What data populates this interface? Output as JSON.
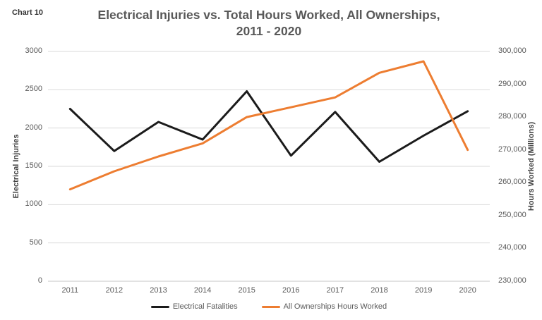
{
  "chart_label": "Chart 10",
  "chart_data": {
    "type": "line",
    "title": "Electrical Injuries vs. Total Hours Worked, All Ownerships, 2011 - 2020",
    "title_lines": [
      "Electrical Injuries vs. Total Hours Worked, All Ownerships,",
      "2011 - 2020"
    ],
    "x": [
      "2011",
      "2012",
      "2013",
      "2014",
      "2015",
      "2016",
      "2017",
      "2018",
      "2019",
      "2020"
    ],
    "series": [
      {
        "name": "Electrical Fatalities",
        "axis": "left",
        "color": "#1b1b1b",
        "values": [
          2250,
          1700,
          2080,
          1850,
          2480,
          1640,
          2210,
          1560,
          1900,
          2220
        ]
      },
      {
        "name": "All Ownerships Hours Worked",
        "axis": "right",
        "color": "#ED7D31",
        "values": [
          258000,
          263500,
          268000,
          272000,
          280000,
          283000,
          286000,
          293500,
          297000,
          270000
        ]
      }
    ],
    "left_axis": {
      "label": "Electrical Injuries",
      "min": 0,
      "max": 3000,
      "step": 500,
      "ticks": [
        "0",
        "500",
        "1000",
        "1500",
        "2000",
        "2500",
        "3000"
      ]
    },
    "right_axis": {
      "label": "Hours Worked (Millions)",
      "min": 230000,
      "max": 300000,
      "step": 10000,
      "ticks": [
        "230,000",
        "240,000",
        "250,000",
        "260,000",
        "270,000",
        "280,000",
        "290,000",
        "300,000"
      ]
    },
    "grid": true,
    "grid_color": "#D9D9D9",
    "axis_line_color": "#C6C6C6",
    "legend_position": "bottom"
  }
}
